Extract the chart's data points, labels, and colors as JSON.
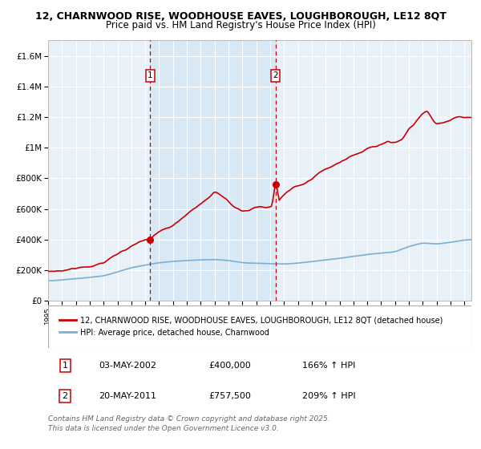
{
  "title1": "12, CHARNWOOD RISE, WOODHOUSE EAVES, LOUGHBOROUGH, LE12 8QT",
  "title2": "Price paid vs. HM Land Registry's House Price Index (HPI)",
  "bg_color": "#ffffff",
  "plot_bg_color": "#e8f0f8",
  "grid_color": "#ffffff",
  "hpi_color": "#7ab0d4",
  "price_color": "#cc0000",
  "dashed_color": "#cc0000",
  "shaded_color": "#d8e8f5",
  "transaction1_date": 2002.35,
  "transaction1_price": 400000,
  "transaction2_date": 2011.38,
  "transaction2_price": 757500,
  "xmin": 1995.0,
  "xmax": 2025.5,
  "ymin": 0,
  "ymax": 1700000,
  "yticks": [
    0,
    200000,
    400000,
    600000,
    800000,
    1000000,
    1200000,
    1400000,
    1600000
  ],
  "ytick_labels": [
    "£0",
    "£200K",
    "£400K",
    "£600K",
    "£800K",
    "£1M",
    "£1.2M",
    "£1.4M",
    "£1.6M"
  ],
  "legend_line1": "12, CHARNWOOD RISE, WOODHOUSE EAVES, LOUGHBOROUGH, LE12 8QT (detached house)",
  "legend_line2": "HPI: Average price, detached house, Charnwood",
  "table_row1": [
    "1",
    "03-MAY-2002",
    "£400,000",
    "166% ↑ HPI"
  ],
  "table_row2": [
    "2",
    "20-MAY-2011",
    "£757,500",
    "209% ↑ HPI"
  ],
  "footer": "Contains HM Land Registry data © Crown copyright and database right 2025.\nThis data is licensed under the Open Government Licence v3.0.",
  "title_fontsize": 9.0,
  "axis_fontsize": 7.5,
  "legend_fontsize": 7.0,
  "table_fontsize": 8.0,
  "footer_fontsize": 6.5
}
